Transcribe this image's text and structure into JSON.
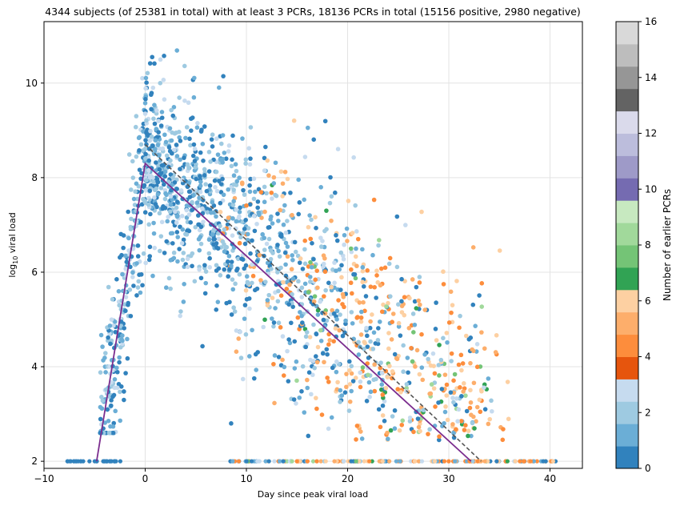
{
  "chart_data": {
    "type": "scatter",
    "title": "4344 subjects (of 25381 in total) with at least 3 PCRs, 18136 PCRs in total (15156 positive, 2980 negative)",
    "xlabel": "Day since peak viral load",
    "ylabel_main": "log",
    "ylabel_sub": "10",
    "ylabel_rest": " viral load",
    "xlim": [
      -10,
      43.2
    ],
    "ylim": [
      1.85,
      11.3
    ],
    "xticks": [
      -10,
      0,
      10,
      20,
      30,
      40
    ],
    "yticks": [
      2,
      4,
      6,
      8,
      10
    ],
    "grid": true,
    "colorbar": {
      "label": "Number of earlier PCRs",
      "range": [
        0,
        16
      ],
      "ticks": [
        0,
        2,
        4,
        6,
        8,
        10,
        12,
        14,
        16
      ],
      "colors": [
        "#3182bd",
        "#6baed6",
        "#9ecae1",
        "#c6dbef",
        "#e6550d",
        "#fd8d3c",
        "#fdae6b",
        "#fdd0a2",
        "#31a354",
        "#74c476",
        "#a1d99b",
        "#c7e9c0",
        "#756bb1",
        "#9e9ac8",
        "#bcbddc",
        "#dadaeb",
        "#636363",
        "#969696",
        "#bdbdbd",
        "#d9d9d9"
      ]
    },
    "fit_line": {
      "name": "fit",
      "color": "#7b2d8e",
      "points": [
        [
          -4.8,
          2.0
        ],
        [
          0,
          8.3
        ],
        [
          32.2,
          2.0
        ]
      ]
    },
    "trend_line": {
      "name": "dashed",
      "color": "#555555",
      "points": [
        [
          0,
          8.7
        ],
        [
          33.2,
          2.0
        ]
      ]
    },
    "series": [
      {
        "name": "positive PCRs",
        "count": 15156
      },
      {
        "name": "negative PCRs",
        "count": 2980,
        "y": 2.0
      }
    ]
  }
}
